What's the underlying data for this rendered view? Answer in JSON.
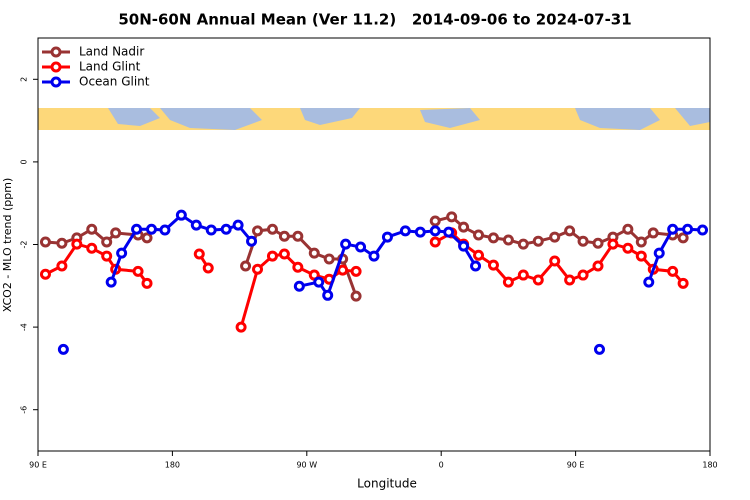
{
  "chart_data": {
    "type": "line",
    "title": "50N-60N Annual Mean (Ver 11.2)   2014-09-06 to 2024-07-31",
    "xlabel": "Longitude",
    "ylabel": "XCO2 - MLO trend (ppm)",
    "xlim": [
      90,
      540
    ],
    "xticks": [
      {
        "value": 90,
        "label": "90 E"
      },
      180,
      {
        "value": 270,
        "label": "90 W"
      },
      {
        "value": 360,
        "label": "0"
      },
      {
        "value": 450,
        "label": "90 E"
      },
      {
        "value": 540,
        "label": "180"
      }
    ],
    "ylim": [
      -7,
      3
    ],
    "yticks": [
      -6,
      -4,
      -2,
      0,
      2
    ],
    "legend": "upper left",
    "series": [
      {
        "name": "Land Nadir",
        "color": "#993333",
        "x": [
          95,
          106,
          116,
          126,
          136,
          142,
          157,
          163,
          null,
          229,
          237,
          247,
          255,
          264,
          275,
          285,
          294,
          303,
          null,
          356,
          367,
          375,
          385,
          395,
          405,
          415,
          425,
          436,
          446,
          455,
          465,
          475,
          485,
          494,
          502,
          515,
          522
        ],
        "values": [
          -1.94,
          -1.97,
          -1.84,
          -1.63,
          -1.94,
          -1.72,
          -1.77,
          -1.84,
          null,
          -2.52,
          -1.67,
          -1.63,
          -1.8,
          -1.8,
          -2.21,
          -2.35,
          -2.35,
          -3.25,
          null,
          -1.43,
          -1.33,
          -1.58,
          -1.77,
          -1.84,
          -1.89,
          -1.99,
          -1.92,
          -1.82,
          -1.67,
          -1.92,
          -1.97,
          -1.82,
          -1.63,
          -1.94,
          -1.72,
          -1.77,
          -1.84
        ]
      },
      {
        "name": "Land Glint",
        "color": "#ff0000",
        "x": [
          95,
          106,
          116,
          126,
          136,
          142,
          157,
          163,
          null,
          198,
          204,
          null,
          226,
          237,
          247,
          255,
          264,
          275,
          285,
          294,
          303,
          null,
          356,
          367,
          375,
          385,
          395,
          405,
          415,
          425,
          436,
          446,
          455,
          465,
          475,
          485,
          494,
          502,
          515,
          522
        ],
        "values": [
          -2.72,
          -2.52,
          -1.99,
          -2.09,
          -2.28,
          -2.6,
          -2.65,
          -2.94,
          null,
          -2.23,
          -2.57,
          null,
          -4.0,
          -2.6,
          -2.28,
          -2.23,
          -2.55,
          -2.74,
          -2.84,
          -2.62,
          -2.65,
          null,
          -1.94,
          -1.72,
          -1.99,
          -2.26,
          -2.5,
          -2.91,
          -2.74,
          -2.86,
          -2.4,
          -2.86,
          -2.74,
          -2.52,
          -1.99,
          -2.09,
          -2.28,
          -2.6,
          -2.65,
          -2.94
        ]
      },
      {
        "name": "Ocean Glint",
        "color": "#0000ee",
        "x": [
          107,
          null,
          139,
          146,
          156,
          166,
          175,
          186,
          196,
          206,
          216,
          224,
          233,
          null,
          265,
          278,
          284,
          296,
          306,
          315,
          324,
          336,
          346,
          356,
          365,
          375,
          383,
          null,
          466,
          null,
          499,
          506,
          515,
          525,
          535
        ],
        "values": [
          -4.54,
          null,
          -2.91,
          -2.21,
          -1.63,
          -1.63,
          -1.65,
          -1.29,
          -1.53,
          -1.65,
          -1.63,
          -1.53,
          -1.92,
          null,
          -3.01,
          -2.91,
          -3.23,
          -1.99,
          -2.06,
          -2.28,
          -1.82,
          -1.67,
          -1.7,
          -1.67,
          -1.7,
          -2.04,
          -2.52,
          null,
          -4.54,
          null,
          -2.91,
          -2.21,
          -1.63,
          -1.63,
          -1.65
        ]
      }
    ]
  }
}
